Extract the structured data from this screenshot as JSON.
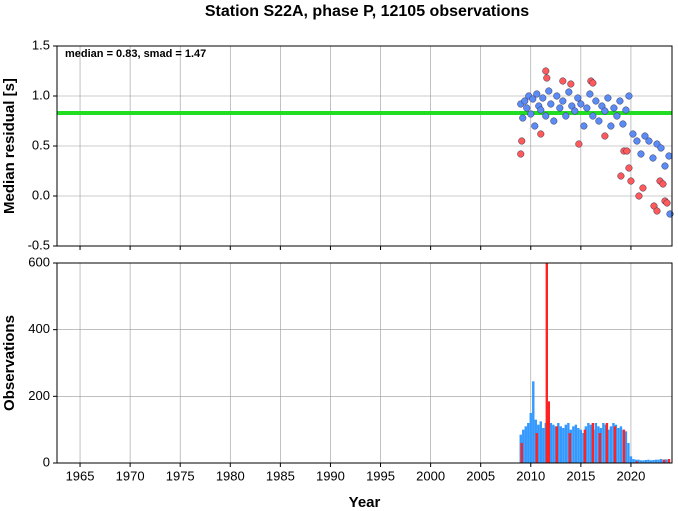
{
  "chart_data": [
    {
      "type": "scatter",
      "title": "Station S22A, phase P, 12105 observations",
      "ylabel": "Median residual [s]",
      "annotation": "median = 0.83, smad = 1.47",
      "median_line": 0.83,
      "median_color": "#22dd22",
      "xlim": [
        1962.7,
        2024.1
      ],
      "xticks": [
        1965,
        1970,
        1975,
        1980,
        1985,
        1990,
        1995,
        2000,
        2005,
        2010,
        2015,
        2020
      ],
      "ylim": [
        -0.5,
        1.5
      ],
      "yticks": [
        -0.5,
        {
          "value": 0,
          "label": "0.0"
        },
        0.5,
        {
          "value": 1,
          "label": "1.0"
        },
        1.5
      ],
      "grid": true,
      "series": [
        {
          "color": "#5b8cf5",
          "x": [
            2009.0,
            2009.2,
            2009.4,
            2009.6,
            2009.8,
            2010.0,
            2010.2,
            2010.4,
            2010.6,
            2010.8,
            2011.0,
            2011.2,
            2011.5,
            2011.8,
            2012.0,
            2012.3,
            2012.6,
            2012.9,
            2013.2,
            2013.5,
            2013.8,
            2014.1,
            2014.4,
            2014.7,
            2015.0,
            2015.3,
            2015.6,
            2015.9,
            2016.2,
            2016.5,
            2016.8,
            2017.1,
            2017.4,
            2017.7,
            2018.0,
            2018.3,
            2018.6,
            2018.9,
            2019.2,
            2019.5,
            2019.8,
            2020.2,
            2020.6,
            2021.0,
            2021.4,
            2021.8,
            2022.2,
            2022.6,
            2023.0,
            2023.4,
            2023.8,
            2023.9
          ],
          "values": [
            0.92,
            0.78,
            0.95,
            0.88,
            1.0,
            0.82,
            0.97,
            0.7,
            1.02,
            0.9,
            0.86,
            0.98,
            0.8,
            1.05,
            0.92,
            0.75,
            1.0,
            0.88,
            0.95,
            0.8,
            1.04,
            0.9,
            0.85,
            0.98,
            0.92,
            0.7,
            0.88,
            1.02,
            0.8,
            0.95,
            0.75,
            0.9,
            0.85,
            0.98,
            0.7,
            0.88,
            0.8,
            0.95,
            0.72,
            0.86,
            1.0,
            0.62,
            0.55,
            0.42,
            0.6,
            0.55,
            0.38,
            0.52,
            0.48,
            0.3,
            0.4,
            -0.18
          ]
        },
        {
          "color": "#ff5a5a",
          "x": [
            2009.0,
            2009.1,
            2011.0,
            2011.5,
            2011.6,
            2013.2,
            2014.0,
            2014.8,
            2016.0,
            2016.2,
            2017.4,
            2019.0,
            2019.3,
            2019.6,
            2019.8,
            2020.0,
            2020.8,
            2021.2,
            2022.3,
            2022.6,
            2022.9,
            2023.2,
            2023.4,
            2023.6
          ],
          "values": [
            0.42,
            0.55,
            0.62,
            1.25,
            1.18,
            1.15,
            1.12,
            0.52,
            1.15,
            1.13,
            0.6,
            0.2,
            0.45,
            0.45,
            0.28,
            0.15,
            0.0,
            0.08,
            -0.1,
            -0.15,
            0.15,
            0.12,
            -0.05,
            -0.07
          ]
        }
      ]
    },
    {
      "type": "bar",
      "xlabel": "Year",
      "ylabel": "Observations",
      "xlim": [
        1962.7,
        2024.1
      ],
      "xticks": [
        1965,
        1970,
        1975,
        1980,
        1985,
        1990,
        1995,
        2000,
        2005,
        2010,
        2015,
        2020
      ],
      "ylim": [
        0,
        600
      ],
      "yticks": [
        0,
        200,
        400,
        600
      ],
      "grid": true,
      "series": [
        {
          "color": "#3399ff",
          "x": [
            2009.0,
            2009.25,
            2009.5,
            2009.75,
            2010.0,
            2010.25,
            2010.5,
            2010.75,
            2011.0,
            2011.25,
            2011.5,
            2011.75,
            2012.0,
            2012.25,
            2012.5,
            2012.75,
            2013.0,
            2013.25,
            2013.5,
            2013.75,
            2014.0,
            2014.25,
            2014.5,
            2014.75,
            2015.0,
            2015.25,
            2015.5,
            2015.75,
            2016.0,
            2016.25,
            2016.5,
            2016.75,
            2017.0,
            2017.25,
            2017.5,
            2017.75,
            2018.0,
            2018.25,
            2018.5,
            2018.75,
            2019.0,
            2019.25,
            2019.5,
            2019.75,
            2020.0,
            2020.25,
            2020.5,
            2020.75,
            2021.0,
            2021.25,
            2021.5,
            2021.75,
            2022.0,
            2022.25,
            2022.5,
            2022.75,
            2023.0,
            2023.25,
            2023.5,
            2023.75
          ],
          "values": [
            85,
            100,
            110,
            120,
            150,
            245,
            130,
            115,
            125,
            105,
            120,
            110,
            120,
            115,
            110,
            120,
            110,
            105,
            115,
            120,
            100,
            110,
            115,
            105,
            100,
            90,
            110,
            120,
            115,
            100,
            120,
            110,
            105,
            120,
            115,
            100,
            110,
            120,
            115,
            105,
            110,
            100,
            95,
            60,
            20,
            12,
            10,
            10,
            8,
            8,
            9,
            10,
            8,
            9,
            10,
            10,
            12,
            10,
            11,
            10
          ]
        },
        {
          "color": "#ff2222",
          "x": [
            2009.1,
            2010.6,
            2011.6,
            2011.8,
            2012.6,
            2013.9,
            2015.4,
            2016.2,
            2016.9,
            2017.6,
            2018.4,
            2019.3,
            2020.6,
            2023.3,
            2023.8
          ],
          "values": [
            60,
            90,
            600,
            185,
            110,
            90,
            100,
            120,
            90,
            120,
            110,
            100,
            5,
            10,
            12
          ]
        }
      ]
    }
  ]
}
